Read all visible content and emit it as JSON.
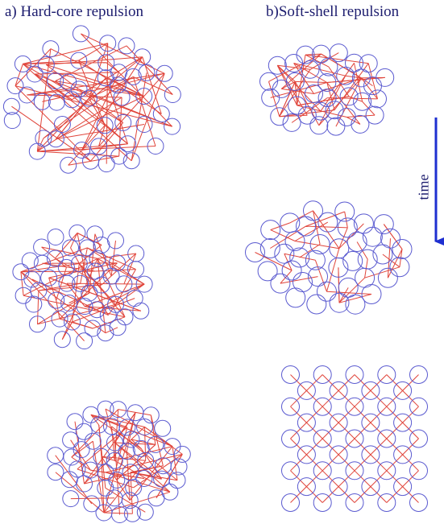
{
  "panels": {
    "a": {
      "title": "a) Hard-core repulsion"
    },
    "b": {
      "title": "b)Soft-shell repulsion"
    }
  },
  "time_label": "time",
  "colors": {
    "title": "#1c1c6e",
    "circle_stroke": "#5a5ad0",
    "bond_stroke": "#e0443a",
    "arrow": "#1e2fd0"
  }
}
